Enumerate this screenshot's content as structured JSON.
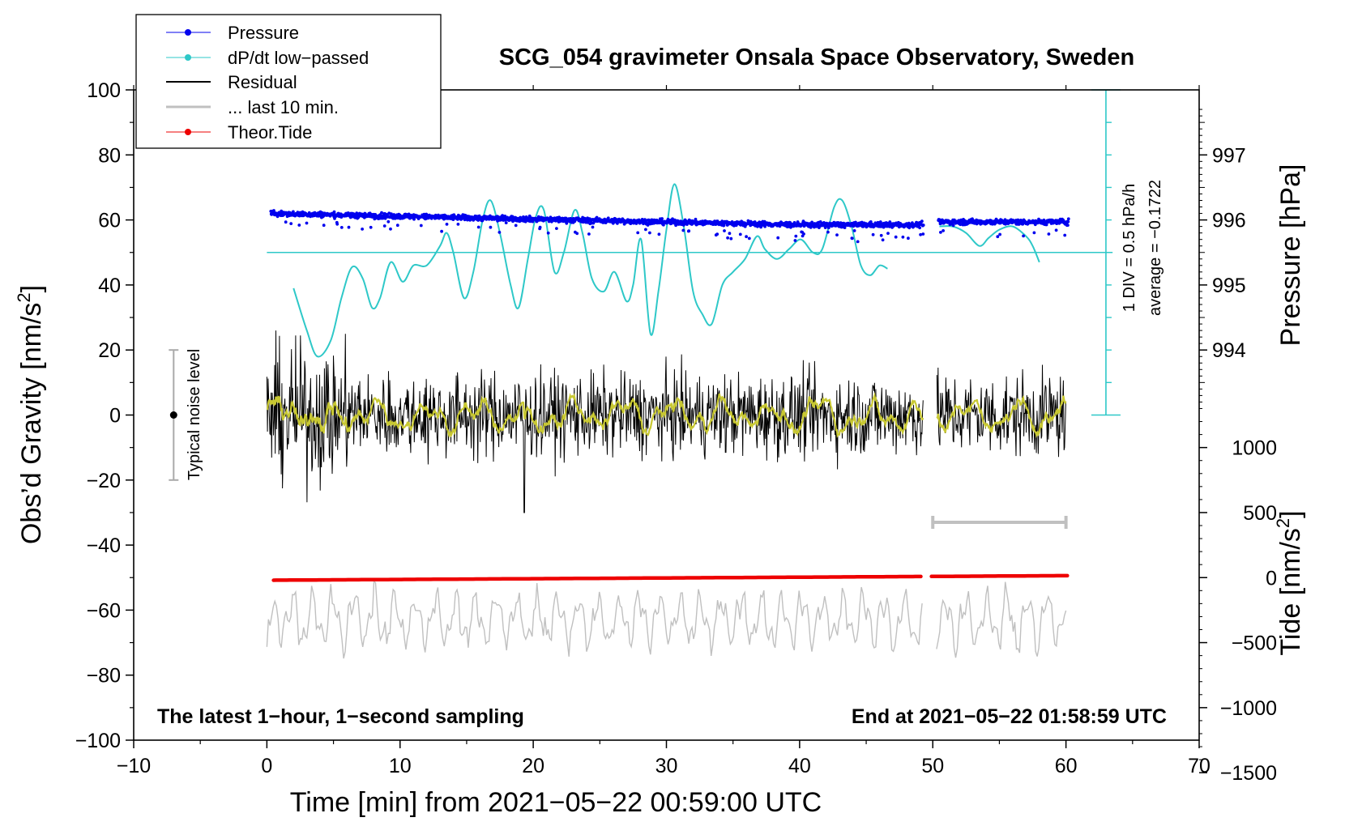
{
  "chart_data": {
    "type": "line",
    "title": "SCG_054 gravimeter Onsala Space Observatory, Sweden",
    "xlabel": "Time [min] from 2021−05−22 00:59:00 UTC",
    "ylabel_left_main": "Obs’d Gravity [nm/s",
    "ylabel_left_sup": "2",
    "ylabel_left_end": "]",
    "ylabel_right_pressure": "Pressure [hPa]",
    "ylabel_right_tide_main": "Tide [nm/s",
    "ylabel_right_tide_sup": "2",
    "ylabel_right_tide_end": "]",
    "xlim": [
      -10,
      70
    ],
    "ylim": [
      -100,
      100
    ],
    "x_ticks": [
      -10,
      0,
      10,
      20,
      30,
      40,
      50,
      60,
      70
    ],
    "x_tick_labels": [
      "−10",
      "0",
      "10",
      "20",
      "30",
      "40",
      "50",
      "60",
      "70"
    ],
    "y_ticks": [
      -100,
      -80,
      -60,
      -40,
      -20,
      0,
      20,
      40,
      60,
      80,
      100
    ],
    "y_tick_labels": [
      "−100",
      "−80",
      "−60",
      "−40",
      "−20",
      "0",
      "20",
      "40",
      "60",
      "80",
      "100"
    ],
    "pressure_axis": {
      "ticks": [
        994,
        995,
        996,
        997
      ],
      "labels": [
        "994",
        "995",
        "996",
        "997"
      ],
      "value_at_y0": 993,
      "per_gravity_unit": 0.05
    },
    "tide_axis": {
      "ticks": [
        1000,
        500,
        0,
        -500,
        -1000,
        -1500
      ],
      "labels": [
        "1000",
        "500",
        "0",
        "−500",
        "−1000",
        "−1500"
      ],
      "value_at_y_neg50": 0,
      "per_gravity_unit": 25
    },
    "dpdt": {
      "baseline": 50,
      "scale_x": 63,
      "scale_range": [
        0,
        100
      ],
      "scale_label_1": "1 DIV = 0.5 hPa/h",
      "scale_label_2": "average = −0.1722",
      "segments": [
        [
          [
            2,
            39
          ],
          [
            3,
            26
          ],
          [
            3.8,
            18
          ],
          [
            4.8,
            23
          ],
          [
            5.6,
            36
          ],
          [
            6.4,
            45.5
          ],
          [
            7.2,
            42
          ],
          [
            7.9,
            33
          ],
          [
            8.5,
            36
          ],
          [
            9.3,
            47
          ],
          [
            10.2,
            41
          ],
          [
            11,
            46
          ],
          [
            12,
            46
          ],
          [
            13,
            52
          ],
          [
            13.5,
            56
          ],
          [
            14,
            50
          ],
          [
            14.8,
            36
          ],
          [
            15.5,
            44
          ],
          [
            16.2,
            60
          ],
          [
            16.8,
            66
          ],
          [
            17.5,
            56
          ],
          [
            18.3,
            40
          ],
          [
            18.9,
            33
          ],
          [
            19.6,
            48
          ],
          [
            20.2,
            61
          ],
          [
            20.8,
            63
          ],
          [
            21.6,
            44
          ],
          [
            22.3,
            50
          ],
          [
            23.1,
            63
          ],
          [
            23.7,
            56
          ],
          [
            24.4,
            42
          ],
          [
            25.3,
            38
          ],
          [
            26.1,
            44
          ],
          [
            27,
            35
          ],
          [
            27.5,
            40
          ],
          [
            28.1,
            54
          ],
          [
            28.8,
            25
          ],
          [
            29.4,
            38
          ],
          [
            30,
            57
          ],
          [
            30.6,
            71
          ],
          [
            31.3,
            58
          ],
          [
            32,
            38
          ],
          [
            32.7,
            31
          ],
          [
            33.4,
            28
          ],
          [
            34.2,
            40
          ],
          [
            35,
            44
          ],
          [
            35.9,
            48
          ],
          [
            36.8,
            55
          ],
          [
            37.4,
            51
          ],
          [
            38.3,
            48
          ],
          [
            39.2,
            51
          ],
          [
            40.1,
            54
          ],
          [
            41,
            50
          ],
          [
            41.7,
            51
          ],
          [
            42.6,
            64
          ],
          [
            43.2,
            66
          ],
          [
            43.9,
            58
          ],
          [
            44.6,
            46
          ],
          [
            45.3,
            43
          ],
          [
            46,
            46
          ],
          [
            46.6,
            45
          ]
        ],
        [
          [
            50.5,
            58
          ],
          [
            51.5,
            58
          ],
          [
            52.5,
            56
          ],
          [
            53.5,
            52
          ],
          [
            54.2,
            54.5
          ],
          [
            55,
            57
          ],
          [
            56,
            58
          ],
          [
            57,
            55
          ],
          [
            57.5,
            52
          ],
          [
            58,
            47
          ]
        ]
      ]
    },
    "legend": {
      "pressure": "Pressure",
      "dpdt": "dP/dt low−passed",
      "residual": "Residual",
      "last10": "... last 10 min.",
      "tide": "Theor.Tide"
    },
    "noise_level": {
      "label": "Typical noise level",
      "x": -7,
      "y": 0,
      "range": [
        -20,
        20
      ]
    },
    "last10_bar": {
      "x_range": [
        50,
        60
      ],
      "y": -33
    },
    "footer_left": "The latest 1−hour, 1−second sampling",
    "footer_right": "End at 2021−05−22 01:58:59 UTC",
    "colors": {
      "pressure": "#0000ee",
      "dpdt": "#2ec8c8",
      "residual": "#000000",
      "residual_smooth": "#c8c832",
      "last10": "#c0c0c0",
      "tide": "#ee0000"
    },
    "series_params": {
      "residual": {
        "x_start": 0,
        "x_end": 60,
        "gap": [
          49.3,
          50.3
        ],
        "amplitude": 9
      },
      "pressure": {
        "x_start": 0.3,
        "x_end": 60.2,
        "gap": [
          49.3,
          50.4
        ],
        "start_y": 62,
        "end_y": 58.5,
        "spread": 1.3
      },
      "tide": {
        "x_start": 0.5,
        "x_end": 60.3,
        "gap": [
          49.3,
          49.8
        ],
        "start_y": -50.8,
        "end_y": -49.4
      },
      "last10": {
        "x_start": 0,
        "x_end": 60,
        "gap": [
          49.3,
          50.2
        ],
        "center_y": -63,
        "amplitude": 7
      }
    }
  }
}
